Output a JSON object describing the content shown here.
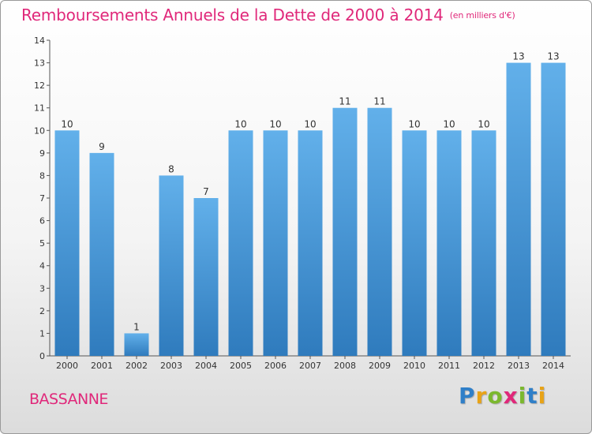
{
  "header": {
    "title": "Remboursements Annuels de la Dette de 2000 à 2014",
    "unit": "(en milliers d'€)"
  },
  "commune": "BASSANNE",
  "brand": {
    "letters": [
      "P",
      "r",
      "o",
      "x",
      "i",
      "t",
      "i"
    ]
  },
  "chart_data": {
    "type": "bar",
    "title": "Remboursements Annuels de la Dette de 2000 à 2014",
    "subtitle": "(en milliers d'€)",
    "xlabel": "",
    "ylabel": "",
    "categories": [
      "2000",
      "2001",
      "2002",
      "2003",
      "2004",
      "2005",
      "2006",
      "2007",
      "2008",
      "2009",
      "2010",
      "2011",
      "2012",
      "2013",
      "2014"
    ],
    "values": [
      10,
      9,
      1,
      8,
      7,
      10,
      10,
      10,
      11,
      11,
      10,
      10,
      10,
      13,
      13
    ],
    "data_labels": [
      "10",
      "9",
      "1",
      "8",
      "7",
      "10",
      "10",
      "10",
      "11",
      "11",
      "10",
      "10",
      "10",
      "13",
      "13"
    ],
    "ylim": [
      0,
      14
    ],
    "yticks": [
      0,
      1,
      2,
      3,
      4,
      5,
      6,
      7,
      8,
      9,
      10,
      11,
      12,
      13,
      14
    ],
    "ytick_labels": [
      "0",
      "1",
      "2",
      "3",
      "4",
      "5",
      "6",
      "7",
      "8",
      "9",
      "10",
      "11",
      "12",
      "13",
      "14"
    ],
    "grid": false,
    "legend": "none",
    "colors": {
      "bar_light": "#62b0ea",
      "bar_dark": "#2f7bbd",
      "axis": "#555555",
      "title": "#e0287a"
    }
  }
}
